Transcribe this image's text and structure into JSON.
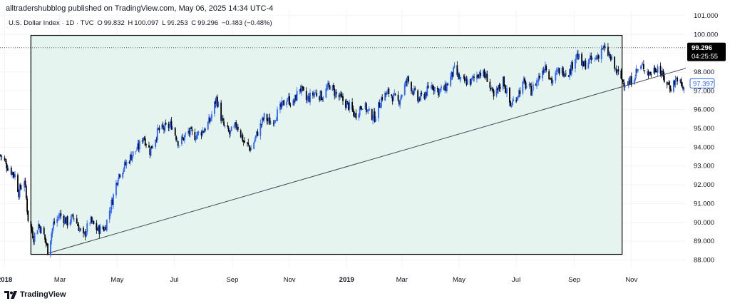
{
  "header": {
    "attribution": "alltradershubblog published on TradingView.com, May 06, 2025 14:34 UTC-4",
    "symbol": "U.S. Dollar Index · 1D · TVC",
    "open_label": "O",
    "open": "99.832",
    "high_label": "H",
    "high": "100.097",
    "low_label": "L",
    "low": "99.253",
    "close_label": "C",
    "close": "99.296",
    "change": "−0.483 (−0.48%)"
  },
  "branding": {
    "name": "TradingView",
    "logo_icon": "tradingview-logo-icon"
  },
  "price_badges": {
    "last_price": "99.296",
    "countdown": "04:25:55",
    "current_marker": "97.397"
  },
  "colors": {
    "up_candle": "#2962ff",
    "down_candle": "#000000",
    "rectangle_fill": "#e6f4ef",
    "rectangle_border": "#000000",
    "badge_bg": "#000000",
    "marker_border": "#2962ff"
  },
  "chart_data": {
    "type": "candlestick",
    "title": "",
    "y_axis": {
      "side": "right",
      "range": [
        87.6,
        101.3
      ],
      "ticks": [
        "101.000",
        "100.000",
        "99.000",
        "98.000",
        "97.000",
        "96.000",
        "95.000",
        "94.000",
        "93.000",
        "92.000",
        "91.000",
        "90.000",
        "89.000",
        "88.000"
      ]
    },
    "x_axis": {
      "range": [
        "2017-12-27",
        "2019-12-29"
      ],
      "ticks": [
        {
          "label": "2018",
          "date": "2018-01-01",
          "bold": true
        },
        {
          "label": "Mar",
          "date": "2018-03-01"
        },
        {
          "label": "May",
          "date": "2018-05-01"
        },
        {
          "label": "Jul",
          "date": "2018-07-01"
        },
        {
          "label": "Sep",
          "date": "2018-09-01"
        },
        {
          "label": "Nov",
          "date": "2018-11-01"
        },
        {
          "label": "2019",
          "date": "2019-01-01",
          "bold": true
        },
        {
          "label": "Mar",
          "date": "2019-03-01"
        },
        {
          "label": "May",
          "date": "2019-05-01"
        },
        {
          "label": "Jul",
          "date": "2019-07-01"
        },
        {
          "label": "Sep",
          "date": "2019-09-01"
        },
        {
          "label": "Nov",
          "date": "2019-11-01"
        }
      ]
    },
    "price_path": [
      [
        "2017-12-27",
        93.6
      ],
      [
        "2018-01-05",
        92.9
      ],
      [
        "2018-01-12",
        92.5
      ],
      [
        "2018-01-16",
        91.6
      ],
      [
        "2018-01-22",
        92.3
      ],
      [
        "2018-01-26",
        90.2
      ],
      [
        "2018-02-01",
        89.2
      ],
      [
        "2018-02-06",
        89.9
      ],
      [
        "2018-02-12",
        89.3
      ],
      [
        "2018-02-16",
        88.5
      ],
      [
        "2018-02-22",
        89.9
      ],
      [
        "2018-03-01",
        90.4
      ],
      [
        "2018-03-09",
        90.0
      ],
      [
        "2018-03-16",
        90.3
      ],
      [
        "2018-03-26",
        89.2
      ],
      [
        "2018-04-02",
        90.1
      ],
      [
        "2018-04-10",
        89.6
      ],
      [
        "2018-04-18",
        89.7
      ],
      [
        "2018-04-26",
        91.2
      ],
      [
        "2018-05-02",
        92.5
      ],
      [
        "2018-05-09",
        93.0
      ],
      [
        "2018-05-17",
        93.6
      ],
      [
        "2018-05-24",
        94.0
      ],
      [
        "2018-05-29",
        94.6
      ],
      [
        "2018-06-05",
        93.8
      ],
      [
        "2018-06-14",
        94.9
      ],
      [
        "2018-06-21",
        95.0
      ],
      [
        "2018-06-28",
        95.2
      ],
      [
        "2018-07-06",
        94.2
      ],
      [
        "2018-07-16",
        94.8
      ],
      [
        "2018-07-23",
        94.6
      ],
      [
        "2018-08-01",
        94.9
      ],
      [
        "2018-08-08",
        95.4
      ],
      [
        "2018-08-15",
        96.6
      ],
      [
        "2018-08-22",
        95.2
      ],
      [
        "2018-08-29",
        94.7
      ],
      [
        "2018-09-06",
        95.2
      ],
      [
        "2018-09-13",
        94.3
      ],
      [
        "2018-09-21",
        93.9
      ],
      [
        "2018-09-28",
        94.8
      ],
      [
        "2018-10-05",
        95.6
      ],
      [
        "2018-10-12",
        95.3
      ],
      [
        "2018-10-19",
        95.8
      ],
      [
        "2018-10-29",
        96.6
      ],
      [
        "2018-11-05",
        96.3
      ],
      [
        "2018-11-12",
        97.2
      ],
      [
        "2018-11-19",
        96.5
      ],
      [
        "2018-11-28",
        96.9
      ],
      [
        "2018-12-06",
        96.7
      ],
      [
        "2018-12-14",
        97.3
      ],
      [
        "2018-12-21",
        96.8
      ],
      [
        "2019-01-03",
        96.2
      ],
      [
        "2019-01-10",
        95.7
      ],
      [
        "2019-01-18",
        96.3
      ],
      [
        "2019-01-25",
        95.8
      ],
      [
        "2019-01-31",
        95.6
      ],
      [
        "2019-02-08",
        96.7
      ],
      [
        "2019-02-15",
        96.9
      ],
      [
        "2019-02-25",
        96.4
      ],
      [
        "2019-03-07",
        97.6
      ],
      [
        "2019-03-18",
        96.5
      ],
      [
        "2019-03-25",
        96.8
      ],
      [
        "2019-04-02",
        97.3
      ],
      [
        "2019-04-09",
        97.0
      ],
      [
        "2019-04-16",
        97.1
      ],
      [
        "2019-04-26",
        98.1
      ],
      [
        "2019-05-03",
        97.5
      ],
      [
        "2019-05-14",
        97.5
      ],
      [
        "2019-05-23",
        98.0
      ],
      [
        "2019-05-31",
        97.7
      ],
      [
        "2019-06-07",
        96.6
      ],
      [
        "2019-06-17",
        97.6
      ],
      [
        "2019-06-25",
        96.2
      ],
      [
        "2019-07-01",
        96.7
      ],
      [
        "2019-07-09",
        97.4
      ],
      [
        "2019-07-17",
        97.0
      ],
      [
        "2019-07-25",
        97.7
      ],
      [
        "2019-08-01",
        98.4
      ],
      [
        "2019-08-08",
        97.5
      ],
      [
        "2019-08-16",
        98.1
      ],
      [
        "2019-08-27",
        98.0
      ],
      [
        "2019-09-03",
        99.0
      ],
      [
        "2019-09-10",
        98.3
      ],
      [
        "2019-09-17",
        98.6
      ],
      [
        "2019-09-24",
        98.7
      ],
      [
        "2019-10-01",
        99.3
      ],
      [
        "2019-10-08",
        98.9
      ],
      [
        "2019-10-15",
        98.1
      ],
      [
        "2019-10-23",
        97.5
      ],
      [
        "2019-10-30",
        97.4
      ],
      [
        "2019-11-07",
        98.1
      ],
      [
        "2019-11-14",
        98.3
      ],
      [
        "2019-11-20",
        97.9
      ],
      [
        "2019-11-29",
        98.3
      ],
      [
        "2019-12-06",
        97.6
      ],
      [
        "2019-12-13",
        97.2
      ],
      [
        "2019-12-20",
        97.7
      ],
      [
        "2019-12-27",
        97.0
      ]
    ],
    "annotations": {
      "rectangle": {
        "from": "2018-01-29",
        "to": "2019-10-22",
        "top": 99.95,
        "bottom": 88.3
      },
      "trendline": {
        "from": [
          "2018-02-16",
          88.35
        ],
        "to": [
          "2019-12-29",
          98.2
        ]
      },
      "last_price_dotted_line": 99.296
    }
  }
}
